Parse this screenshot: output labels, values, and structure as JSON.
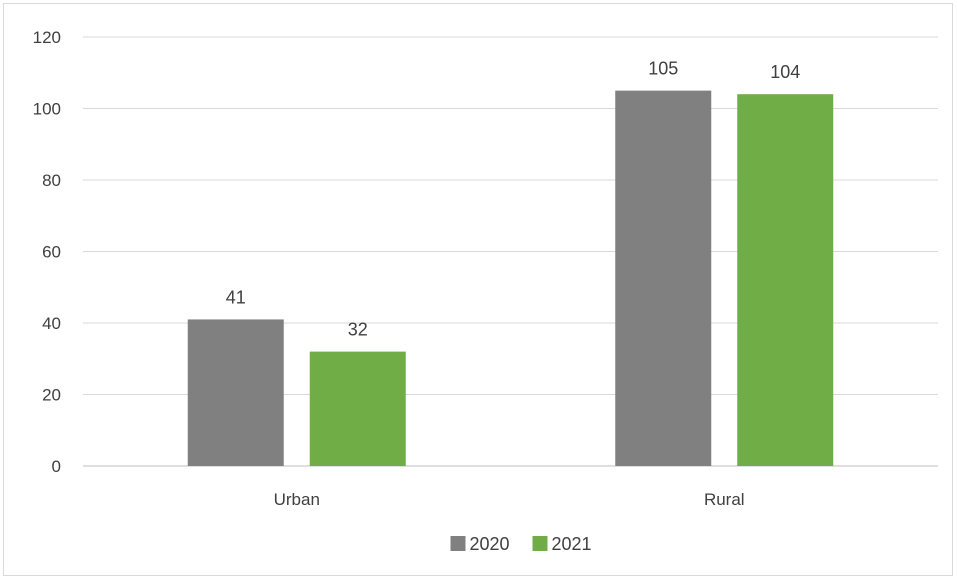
{
  "chart_data": {
    "type": "bar",
    "categories": [
      "Urban",
      "Rural"
    ],
    "series": [
      {
        "name": "2020",
        "values": [
          41,
          105
        ],
        "color": "#808080"
      },
      {
        "name": "2021",
        "values": [
          32,
          104
        ],
        "color": "#70ad47"
      }
    ],
    "ylim": [
      0,
      120
    ],
    "yticks": [
      "0",
      "20",
      "40",
      "60",
      "80",
      "100",
      "120"
    ],
    "grid": true,
    "legend_position": "bottom",
    "data_labels": true
  }
}
